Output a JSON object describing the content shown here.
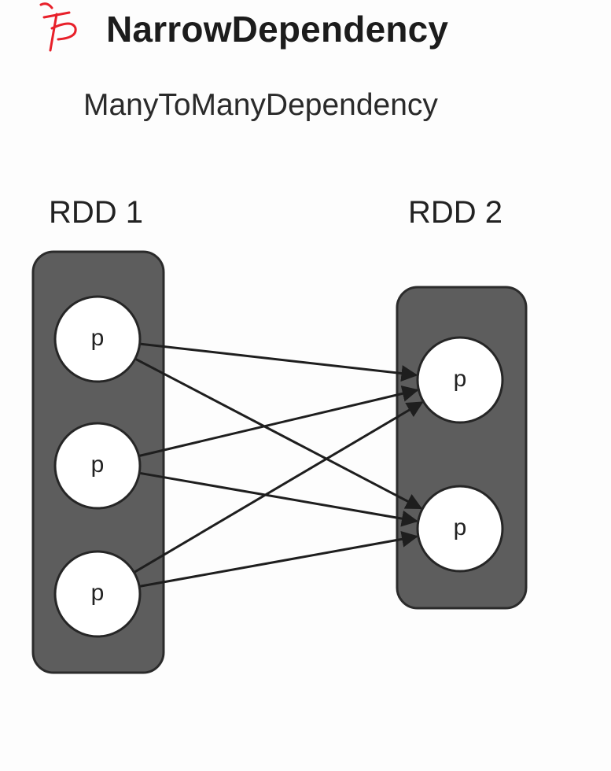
{
  "title": "NarrowDependency",
  "subtitle": "ManyToManyDependency",
  "diagram": {
    "rdd1": {
      "label": "RDD 1",
      "partitions": [
        "p",
        "p",
        "p"
      ]
    },
    "rdd2": {
      "label": "RDD 2",
      "partitions": [
        "p",
        "p"
      ]
    },
    "edges": [
      {
        "from": 0,
        "to": 0
      },
      {
        "from": 0,
        "to": 1
      },
      {
        "from": 1,
        "to": 0
      },
      {
        "from": 1,
        "to": 1
      },
      {
        "from": 2,
        "to": 0
      },
      {
        "from": 2,
        "to": 1
      }
    ]
  },
  "colors": {
    "box_fill": "#5d5d5d",
    "box_stroke": "#2b2b2b",
    "node_fill": "#ffffff",
    "arrow": "#1e1e1e",
    "annotation": "#e8202a"
  }
}
